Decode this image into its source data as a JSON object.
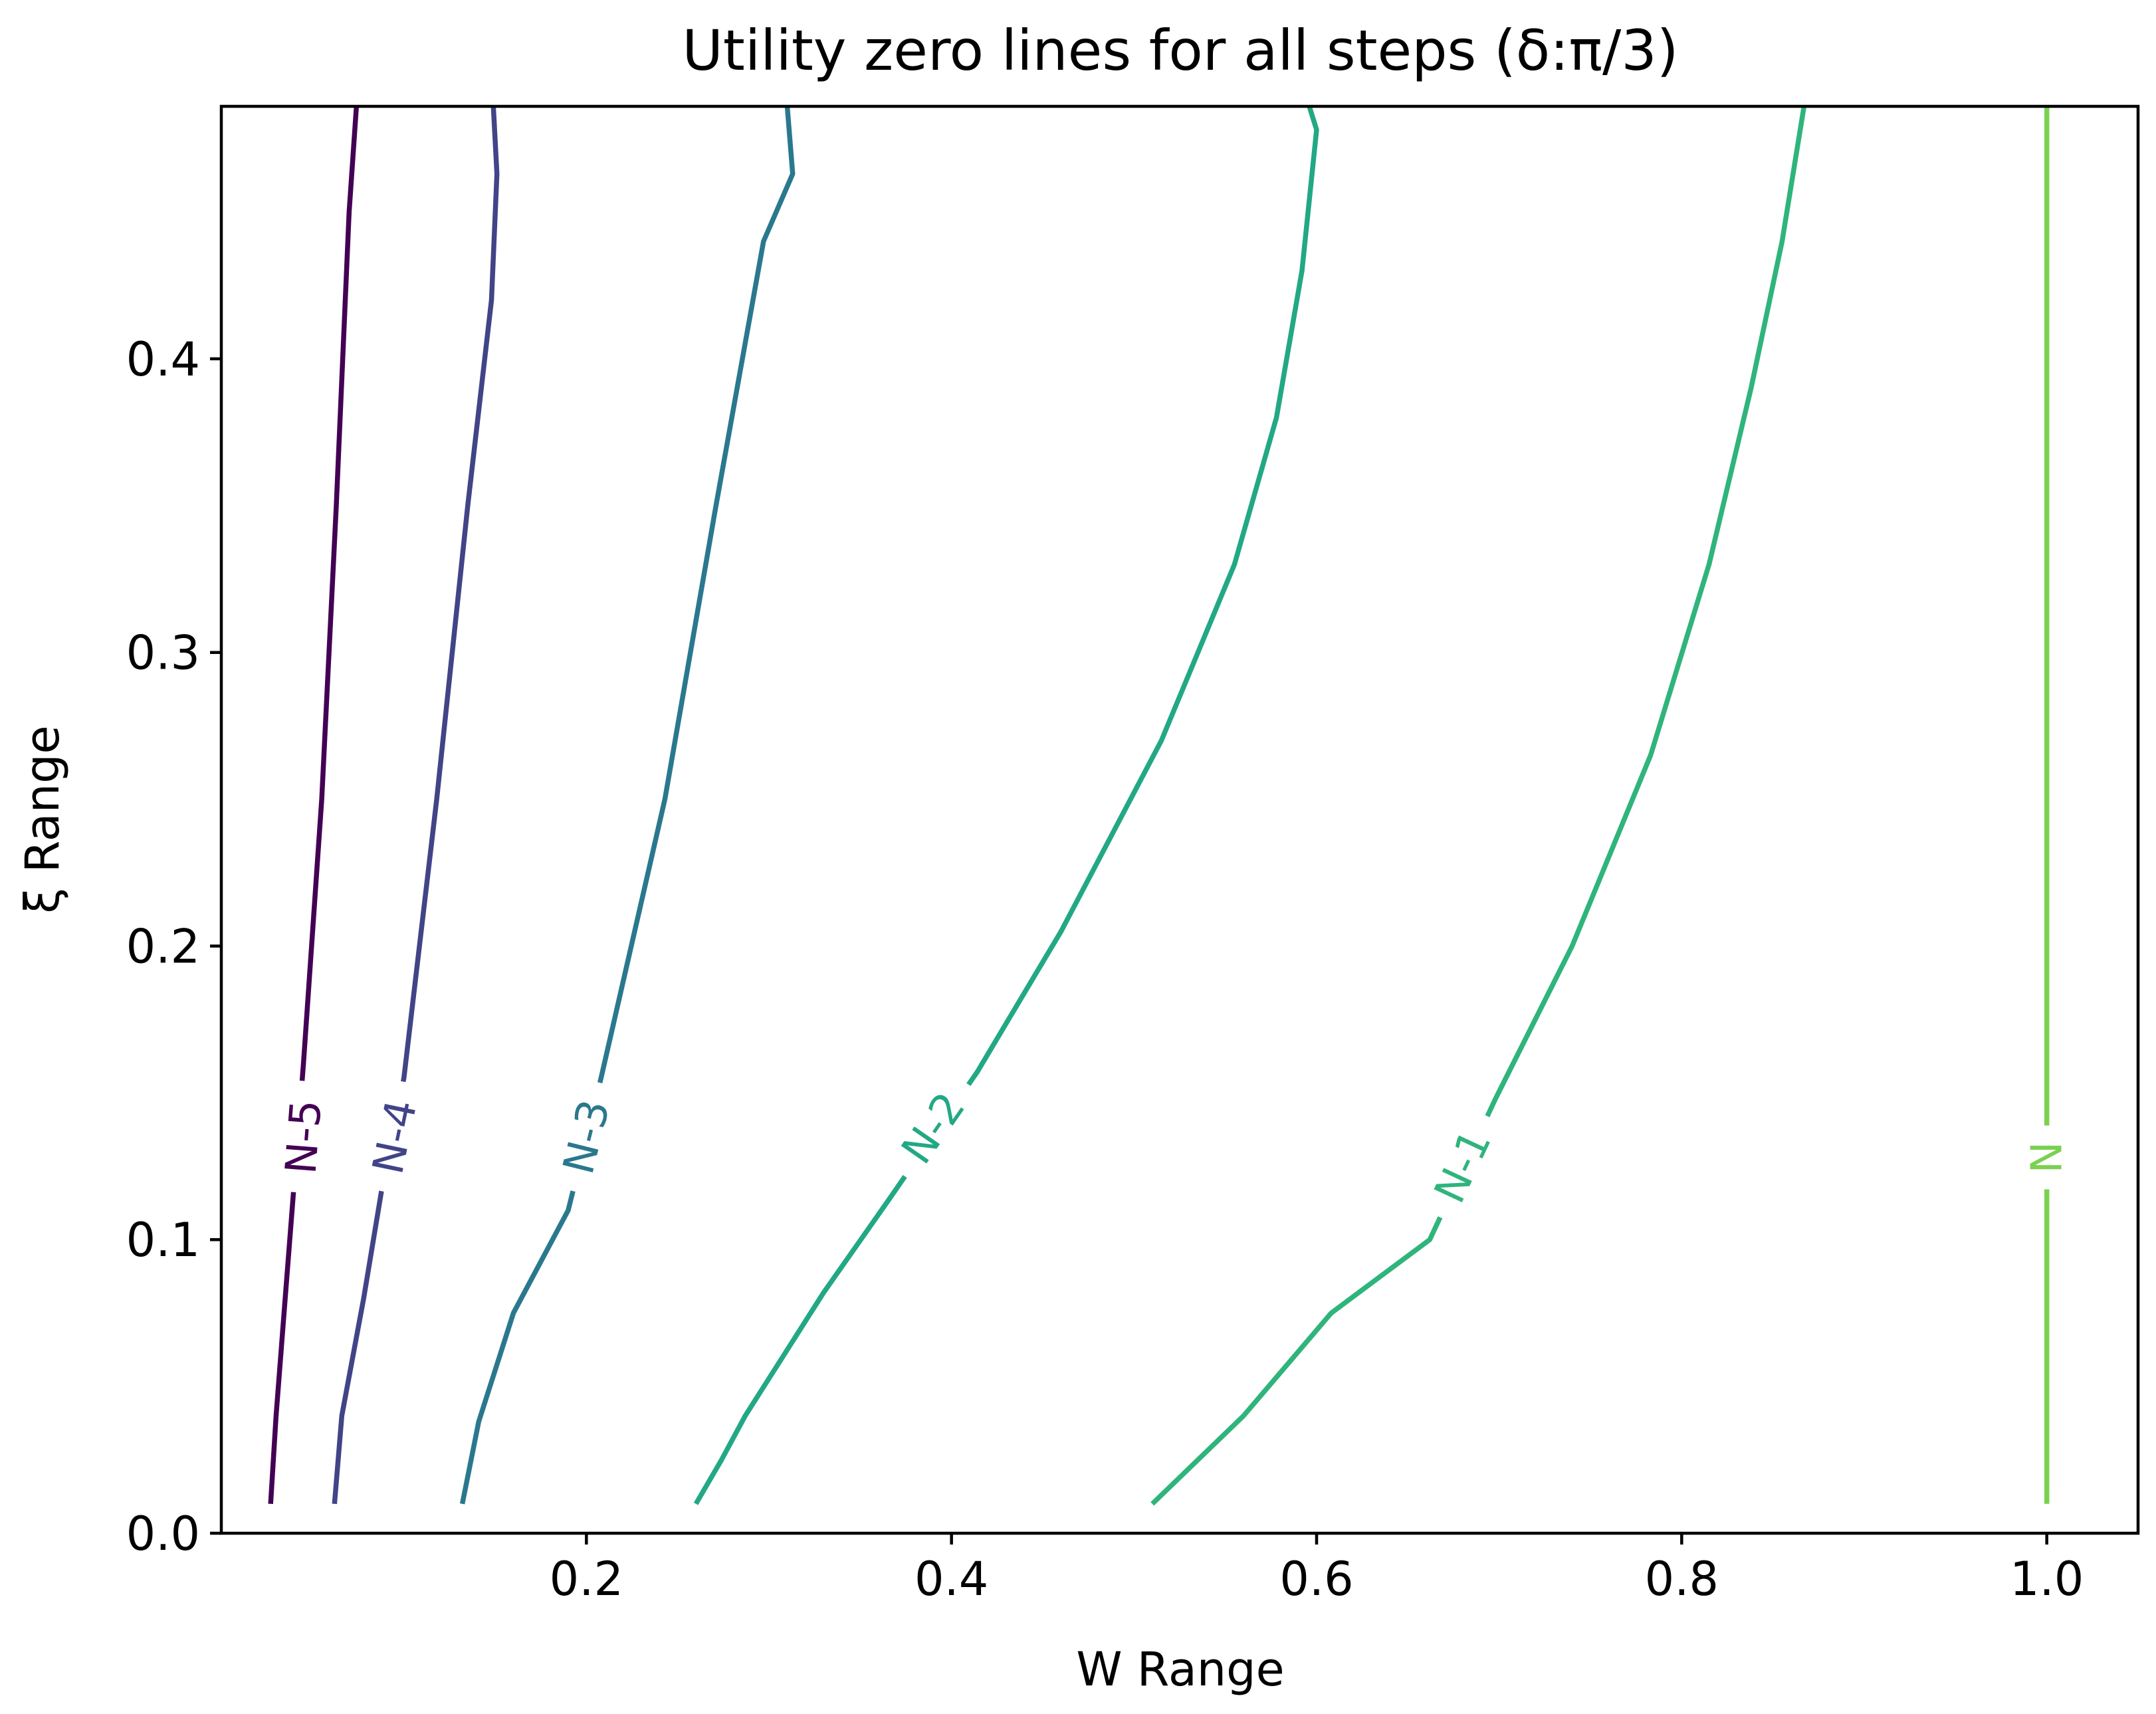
{
  "chart_data": {
    "type": "line",
    "title": "Utility zero lines for all steps (δ:π/3)",
    "xlabel": "W Range",
    "ylabel": "ξ Range",
    "xlim": [
      0.0,
      1.05
    ],
    "ylim": [
      0.0,
      0.486
    ],
    "grid": false,
    "legend": "none",
    "xticks": [
      0.2,
      0.4,
      0.6,
      0.8,
      1.0
    ],
    "xtick_labels": [
      "0.2",
      "0.4",
      "0.6",
      "0.8",
      "1.0"
    ],
    "yticks": [
      0.0,
      0.1,
      0.2,
      0.3,
      0.4
    ],
    "ytick_labels": [
      "0.0",
      "0.1",
      "0.2",
      "0.3",
      "0.4"
    ],
    "series": [
      {
        "name": "N-5",
        "color": "#440154",
        "label_at": [
          0.045,
          0.135
        ],
        "points": [
          [
            0.027,
            0.01
          ],
          [
            0.03,
            0.04
          ],
          [
            0.035,
            0.08
          ],
          [
            0.04,
            0.12
          ],
          [
            0.045,
            0.16
          ],
          [
            0.055,
            0.25
          ],
          [
            0.063,
            0.35
          ],
          [
            0.07,
            0.45
          ],
          [
            0.074,
            0.486
          ]
        ]
      },
      {
        "name": "N-4",
        "color": "#414487",
        "label_at": [
          0.095,
          0.135
        ],
        "points": [
          [
            0.062,
            0.01
          ],
          [
            0.066,
            0.04
          ],
          [
            0.078,
            0.08
          ],
          [
            0.09,
            0.125
          ],
          [
            0.1,
            0.155
          ],
          [
            0.118,
            0.25
          ],
          [
            0.135,
            0.35
          ],
          [
            0.148,
            0.42
          ],
          [
            0.151,
            0.463
          ],
          [
            0.149,
            0.486
          ]
        ]
      },
      {
        "name": "N-3",
        "color": "#2a788e",
        "label_at": [
          0.2,
          0.135
        ],
        "points": [
          [
            0.132,
            0.01
          ],
          [
            0.141,
            0.038
          ],
          [
            0.16,
            0.075
          ],
          [
            0.19,
            0.11
          ],
          [
            0.208,
            0.155
          ],
          [
            0.243,
            0.25
          ],
          [
            0.271,
            0.35
          ],
          [
            0.297,
            0.44
          ],
          [
            0.313,
            0.463
          ],
          [
            0.31,
            0.486
          ]
        ]
      },
      {
        "name": "N-2",
        "color": "#22a884",
        "label_at": [
          0.39,
          0.138
        ],
        "points": [
          [
            0.26,
            0.01
          ],
          [
            0.274,
            0.025
          ],
          [
            0.287,
            0.04
          ],
          [
            0.33,
            0.082
          ],
          [
            0.365,
            0.113
          ],
          [
            0.414,
            0.157
          ],
          [
            0.46,
            0.205
          ],
          [
            0.515,
            0.27
          ],
          [
            0.555,
            0.33
          ],
          [
            0.578,
            0.38
          ],
          [
            0.592,
            0.43
          ],
          [
            0.6,
            0.478
          ],
          [
            0.596,
            0.486
          ]
        ]
      },
      {
        "name": "N-1",
        "color": "#2fb47c",
        "label_at": [
          0.68,
          0.125
        ],
        "points": [
          [
            0.51,
            0.01
          ],
          [
            0.56,
            0.04
          ],
          [
            0.608,
            0.075
          ],
          [
            0.662,
            0.1
          ],
          [
            0.698,
            0.148
          ],
          [
            0.74,
            0.2
          ],
          [
            0.783,
            0.265
          ],
          [
            0.815,
            0.33
          ],
          [
            0.838,
            0.39
          ],
          [
            0.855,
            0.44
          ],
          [
            0.867,
            0.486
          ]
        ]
      },
      {
        "name": "N",
        "color": "#7ad151",
        "label_at": [
          1.0,
          0.128
        ],
        "points": [
          [
            1.0,
            0.01
          ],
          [
            1.0,
            0.486
          ]
        ]
      }
    ]
  }
}
